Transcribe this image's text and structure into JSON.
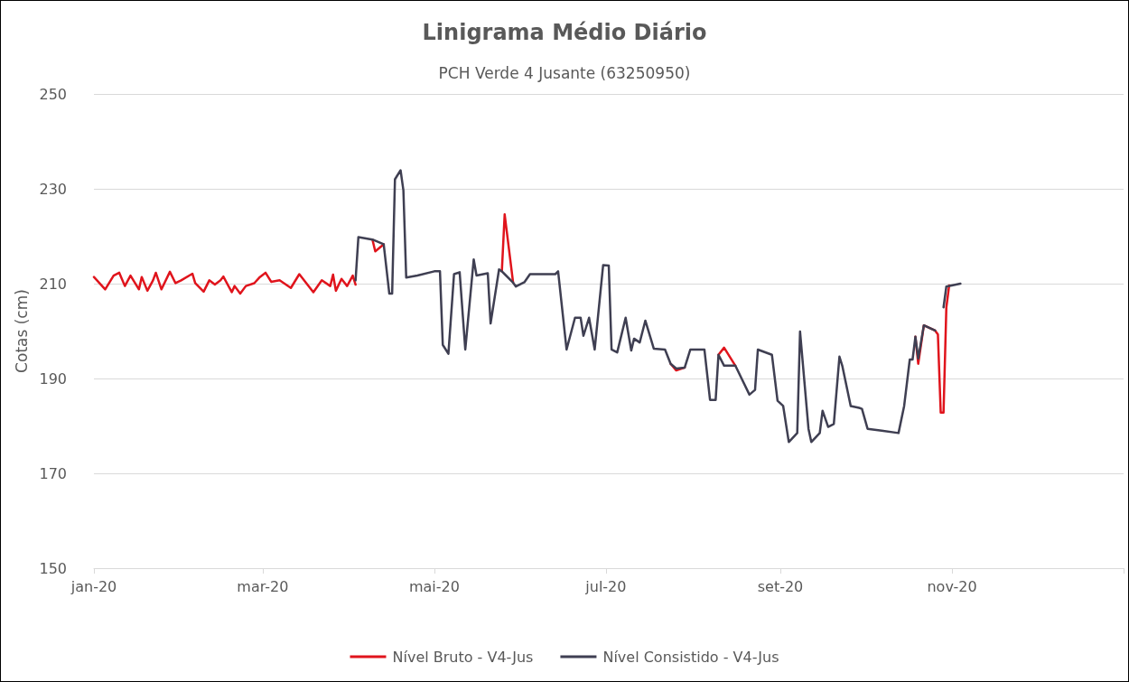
{
  "chart_data": {
    "type": "line",
    "title": "Linigrama Médio Diário",
    "subtitle": "PCH Verde 4 Jusante (63250950)",
    "ylabel": "Cotas (cm)",
    "xlim": [
      "2020-01-01",
      "2021-01-01"
    ],
    "xticks": [
      {
        "value": "2020-01-01",
        "label": "jan-20"
      },
      {
        "value": "2020-03-01",
        "label": "mar-20"
      },
      {
        "value": "2020-05-01",
        "label": "mai-20"
      },
      {
        "value": "2020-07-01",
        "label": "jul-20"
      },
      {
        "value": "2020-09-01",
        "label": "set-20"
      },
      {
        "value": "2020-11-01",
        "label": "nov-20"
      },
      {
        "value": "2021-01-01",
        "label": null
      }
    ],
    "ylim": [
      150,
      250
    ],
    "yticks": [
      150,
      170,
      190,
      210,
      230,
      250
    ],
    "grid": "y",
    "legend": "bottom",
    "marker": "none",
    "line_style": "solid",
    "series": [
      {
        "name": "Nível Bruto - V4-Jus",
        "color": "#e0141c",
        "x": [
          "2020-01-01",
          "2020-01-05",
          "2020-01-08",
          "2020-01-10",
          "2020-01-12",
          "2020-01-14",
          "2020-01-17",
          "2020-01-18",
          "2020-01-20",
          "2020-01-22",
          "2020-01-23",
          "2020-01-25",
          "2020-01-28",
          "2020-01-30",
          "2020-02-01",
          "2020-02-05",
          "2020-02-06",
          "2020-02-09",
          "2020-02-11",
          "2020-02-13",
          "2020-02-15",
          "2020-02-16",
          "2020-02-19",
          "2020-02-20",
          "2020-02-22",
          "2020-02-24",
          "2020-02-27",
          "2020-02-29",
          "2020-03-02",
          "2020-03-04",
          "2020-03-07",
          "2020-03-11",
          "2020-03-14",
          "2020-03-19",
          "2020-03-22",
          "2020-03-25",
          "2020-03-26",
          "2020-03-27",
          "2020-03-29",
          "2020-03-31",
          "2020-04-02",
          "2020-04-03",
          "2020-04-06",
          "2020-04-09",
          "2020-04-10",
          "2020-04-13",
          "2020-05-01",
          "2020-05-25",
          "2020-05-26",
          "2020-05-29",
          "2020-07-01",
          "2020-07-24",
          "2020-07-26",
          "2020-07-29",
          "2020-08-01",
          "2020-08-10",
          "2020-08-12",
          "2020-08-16",
          "2020-09-01",
          "2020-10-19",
          "2020-10-20",
          "2020-10-22",
          "2020-10-26",
          "2020-10-27",
          "2020-10-28",
          "2020-10-29",
          "2020-10-30",
          "2020-10-31"
        ],
        "values": [
          211.4,
          208.8,
          211.7,
          212.3,
          209.5,
          211.7,
          208.8,
          211.4,
          208.5,
          210.7,
          212.3,
          208.8,
          212.5,
          210.1,
          210.7,
          212.1,
          210.1,
          208.3,
          210.7,
          209.8,
          210.7,
          211.5,
          208.2,
          209.5,
          207.9,
          209.5,
          210.1,
          211.4,
          212.3,
          210.4,
          210.7,
          209.1,
          212,
          208.2,
          210.7,
          209.5,
          211.9,
          208.5,
          211,
          209.5,
          211.7,
          209.8,
          null,
          219.3,
          216.8,
          218.3,
          null,
          212.6,
          224.6,
          210.2,
          null,
          193.1,
          191.7,
          192.3,
          null,
          195,
          196.5,
          192.7,
          null,
          198.8,
          193.1,
          201.2,
          200.1,
          199.3,
          182.8,
          182.8,
          205,
          209.6
        ]
      },
      {
        "name": "Nível Consistido - V4-Jus",
        "color": "#3f3f52",
        "x": [
          "2020-04-03",
          "2020-04-04",
          "2020-04-09",
          "2020-04-13",
          "2020-04-15",
          "2020-04-16",
          "2020-04-17",
          "2020-04-19",
          "2020-04-20",
          "2020-04-21",
          "2020-04-25",
          "2020-05-01",
          "2020-05-03",
          "2020-05-04",
          "2020-05-06",
          "2020-05-08",
          "2020-05-10",
          "2020-05-12",
          "2020-05-15",
          "2020-05-16",
          "2020-05-20",
          "2020-05-21",
          "2020-05-24",
          "2020-05-25",
          "2020-05-26",
          "2020-05-29",
          "2020-05-30",
          "2020-06-02",
          "2020-06-04",
          "2020-06-13",
          "2020-06-14",
          "2020-06-17",
          "2020-06-20",
          "2020-06-22",
          "2020-06-23",
          "2020-06-25",
          "2020-06-27",
          "2020-06-30",
          "2020-07-02",
          "2020-07-03",
          "2020-07-05",
          "2020-07-08",
          "2020-07-10",
          "2020-07-11",
          "2020-07-13",
          "2020-07-15",
          "2020-07-18",
          "2020-07-22",
          "2020-07-24",
          "2020-07-26",
          "2020-07-29",
          "2020-07-31",
          "2020-08-05",
          "2020-08-07",
          "2020-08-09",
          "2020-08-10",
          "2020-08-12",
          "2020-08-16",
          "2020-08-21",
          "2020-08-23",
          "2020-08-24",
          "2020-08-29",
          "2020-08-31",
          "2020-09-02",
          "2020-09-04",
          "2020-09-07",
          "2020-09-08",
          "2020-09-11",
          "2020-09-12",
          "2020-09-15",
          "2020-09-16",
          "2020-09-18",
          "2020-09-20",
          "2020-09-22",
          "2020-09-23",
          "2020-09-26",
          "2020-09-29",
          "2020-09-30",
          "2020-10-02",
          "2020-10-07",
          "2020-10-13",
          "2020-10-15",
          "2020-10-17",
          "2020-10-18",
          "2020-10-19",
          "2020-10-20",
          "2020-10-22",
          "2020-10-26",
          "2020-10-28",
          "2020-10-29",
          "2020-10-30",
          "2020-11-04"
        ],
        "values": [
          210.7,
          219.8,
          219.3,
          218.3,
          207.9,
          207.9,
          232,
          233.9,
          229.7,
          211.3,
          211.7,
          212.6,
          212.6,
          197.1,
          195.2,
          212,
          212.4,
          196.1,
          215.1,
          211.7,
          212.2,
          201.6,
          213,
          212.6,
          212,
          210.2,
          209.4,
          210.3,
          212,
          212,
          212.6,
          196.1,
          202.8,
          202.8,
          199,
          202.8,
          196.1,
          213.9,
          213.8,
          196.1,
          195.5,
          202.8,
          195.9,
          198.4,
          197.6,
          202.2,
          196.3,
          196.1,
          193.1,
          192.1,
          192.3,
          196.1,
          196.1,
          185.5,
          185.5,
          195,
          192.7,
          192.7,
          186.6,
          187.6,
          196.1,
          195,
          185.3,
          184.2,
          176.6,
          178.5,
          199.9,
          179.4,
          176.6,
          178.5,
          183.2,
          179.8,
          180.4,
          194.6,
          192.7,
          184.2,
          183.8,
          183.6,
          179.4,
          179,
          178.5,
          184.2,
          194,
          194,
          198.8,
          194.2,
          201.2,
          200.1,
          null,
          205,
          209.4,
          210
        ]
      }
    ]
  }
}
